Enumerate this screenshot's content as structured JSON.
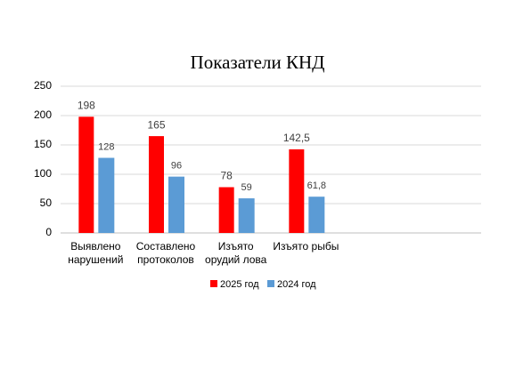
{
  "chart_data": {
    "type": "bar",
    "title": "Показатели КНД",
    "categories": [
      "Выявлено нарушений",
      "Составлено протоколов",
      "Изъято орудий лова",
      "Изъято рыбы",
      null,
      null
    ],
    "series": [
      {
        "name": "2025 год",
        "color": "#ff0000",
        "values": [
          198,
          165,
          78,
          142.5,
          null,
          null
        ],
        "value_labels": [
          "198",
          "165",
          "78",
          "142,5",
          null,
          null
        ]
      },
      {
        "name": "2024 год",
        "color": "#5b9bd5",
        "values": [
          128,
          96,
          59,
          61.8,
          null,
          null
        ],
        "value_labels": [
          "128",
          "96",
          "59",
          "61,8",
          null,
          null
        ]
      }
    ],
    "ylim": [
      0,
      250
    ],
    "yticks": [
      0,
      50,
      100,
      150,
      200,
      250
    ],
    "grid": true,
    "legend": "bottom"
  }
}
